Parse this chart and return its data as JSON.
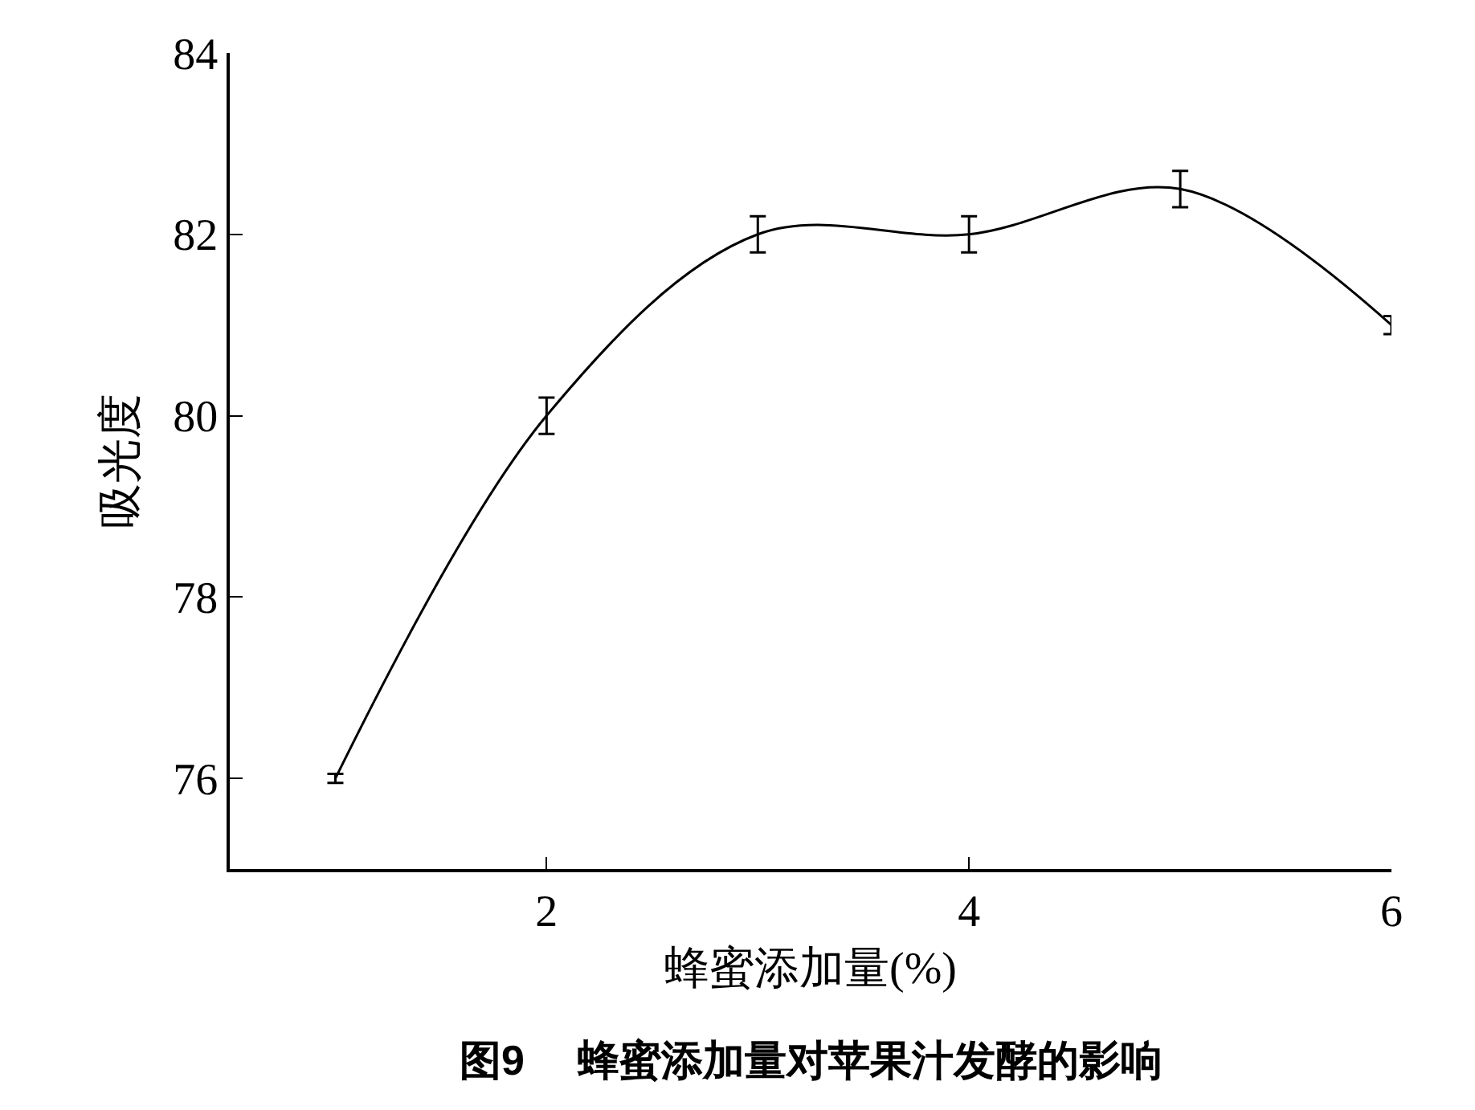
{
  "chart_data": {
    "type": "line",
    "xlabel": "蜂蜜添加量(%)",
    "ylabel": "吸光度",
    "annotations": [
      "图9　 蜂蜜添加量对苹果汁发酵的影响"
    ],
    "x": [
      1,
      2,
      3,
      4,
      5,
      6
    ],
    "series": [
      {
        "color": "#000000",
        "values": [
          76,
          80,
          82,
          82,
          82.5,
          81
        ],
        "errors": [
          0.05,
          0.2,
          0.2,
          0.2,
          0.2,
          0.1
        ]
      }
    ],
    "xlim": [
      0.5,
      6
    ],
    "xticks": [
      2,
      4,
      6
    ],
    "ylim": [
      75,
      84
    ],
    "yticks": [
      76,
      78,
      80,
      82,
      84
    ],
    "marker": "none",
    "line_style": "solid"
  }
}
